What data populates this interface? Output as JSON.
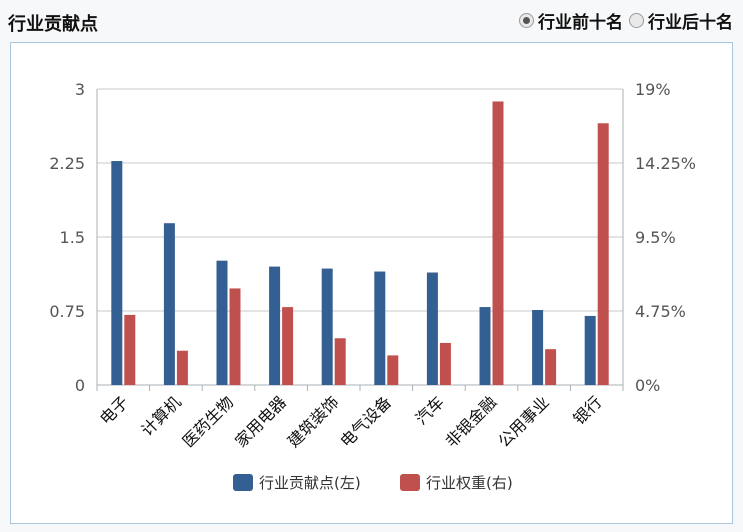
{
  "header": {
    "title": "行业贡献点",
    "radios": [
      {
        "label": "行业前十名",
        "checked": true
      },
      {
        "label": "行业后十名",
        "checked": false
      }
    ]
  },
  "chart_data": {
    "type": "bar",
    "categories": [
      "电子",
      "计算机",
      "医药生物",
      "家用电器",
      "建筑装饰",
      "电气设备",
      "汽车",
      "非银金融",
      "公用事业",
      "银行"
    ],
    "series": [
      {
        "name": "行业贡献点(左)",
        "axis": "left",
        "color": "#345f92",
        "values": [
          2.27,
          1.64,
          1.26,
          1.2,
          1.18,
          1.15,
          1.14,
          0.79,
          0.76,
          0.7
        ]
      },
      {
        "name": "行业权重(右)",
        "axis": "right",
        "color": "#c0504d",
        "values": [
          4.5,
          2.2,
          6.2,
          5.0,
          3.0,
          1.9,
          2.7,
          18.2,
          2.3,
          16.8
        ]
      }
    ],
    "y_left": {
      "min": 0,
      "max": 3,
      "ticks": [
        "0",
        "0.75",
        "1.5",
        "2.25",
        "3"
      ]
    },
    "y_right": {
      "min": 0,
      "max": 19,
      "ticks": [
        "0%",
        "4.75%",
        "9.5%",
        "14.25%",
        "19%"
      ]
    },
    "grid": true,
    "legend": "bottom"
  }
}
